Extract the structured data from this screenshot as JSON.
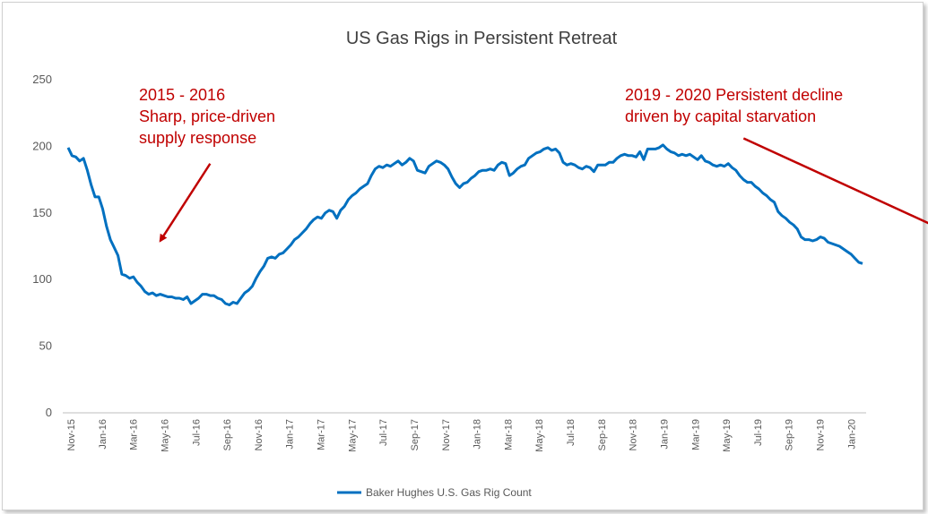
{
  "chart_data": {
    "type": "line",
    "title": "US Gas Rigs in Persistent Retreat",
    "xlabel": "",
    "ylabel": "",
    "ylim": [
      0,
      250
    ],
    "yticks": [
      0,
      50,
      100,
      150,
      200,
      250
    ],
    "x_tick_labels": [
      "Nov-15",
      "Jan-16",
      "Mar-16",
      "May-16",
      "Jul-16",
      "Sep-16",
      "Nov-16",
      "Jan-17",
      "Mar-17",
      "May-17",
      "Jul-17",
      "Sep-17",
      "Nov-17",
      "Jan-18",
      "Mar-18",
      "May-18",
      "Jul-18",
      "Sep-18",
      "Nov-18",
      "Jan-19",
      "Mar-19",
      "May-19",
      "Jul-19",
      "Sep-19",
      "Nov-19",
      "Jan-20"
    ],
    "grid": false,
    "legend_position": "bottom",
    "series": [
      {
        "name": "Baker Hughes U.S. Gas Rig Count",
        "color": "#0070c0",
        "values": [
          199,
          193,
          192,
          189,
          191,
          182,
          171,
          162,
          162,
          153,
          140,
          130,
          124,
          118,
          104,
          103,
          101,
          102,
          98,
          95,
          91,
          89,
          90,
          88,
          89,
          88,
          87,
          87,
          86,
          86,
          85,
          87,
          82,
          84,
          86,
          89,
          89,
          88,
          88,
          86,
          85,
          82,
          81,
          83,
          82,
          86,
          90,
          92,
          95,
          101,
          106,
          110,
          116,
          117,
          116,
          119,
          120,
          123,
          126,
          130,
          132,
          135,
          138,
          142,
          145,
          147,
          146,
          150,
          152,
          151,
          146,
          152,
          155,
          160,
          163,
          165,
          168,
          170,
          172,
          178,
          183,
          185,
          184,
          186,
          185,
          187,
          189,
          186,
          188,
          191,
          189,
          182,
          181,
          180,
          185,
          187,
          189,
          188,
          186,
          183,
          177,
          172,
          169,
          172,
          173,
          176,
          178,
          181,
          182,
          182,
          183,
          182,
          186,
          188,
          187,
          178,
          180,
          183,
          185,
          186,
          191,
          193,
          195,
          196,
          198,
          199,
          197,
          198,
          195,
          188,
          186,
          187,
          186,
          184,
          183,
          185,
          184,
          181,
          186,
          186,
          186,
          188,
          188,
          191,
          193,
          194,
          193,
          193,
          192,
          196,
          190,
          198,
          198,
          198,
          199,
          201,
          198,
          196,
          195,
          193,
          194,
          193,
          194,
          192,
          190,
          193,
          189,
          188,
          186,
          185,
          186,
          185,
          187,
          184,
          182,
          178,
          175,
          173,
          173,
          170,
          168,
          165,
          163,
          160,
          158,
          151,
          148,
          146,
          143,
          141,
          138,
          132,
          130,
          130,
          129,
          130,
          132,
          131,
          128,
          127,
          126,
          125,
          123,
          121,
          119,
          116,
          113,
          112
        ]
      }
    ],
    "annotations": [
      {
        "lines": [
          "2015 - 2016",
          "Sharp, price-driven",
          "supply response"
        ],
        "color": "#c00000"
      },
      {
        "lines": [
          "2019 - 2020 Persistent  decline",
          "driven  by capital starvation"
        ],
        "color": "#c00000"
      }
    ],
    "annotation_arrows": [
      {
        "from_index": 37,
        "from_value": 187,
        "to_index": 24,
        "to_value": 129
      },
      {
        "from_index": 176,
        "from_value": 206,
        "to_index": 232,
        "to_value": 132
      }
    ]
  }
}
